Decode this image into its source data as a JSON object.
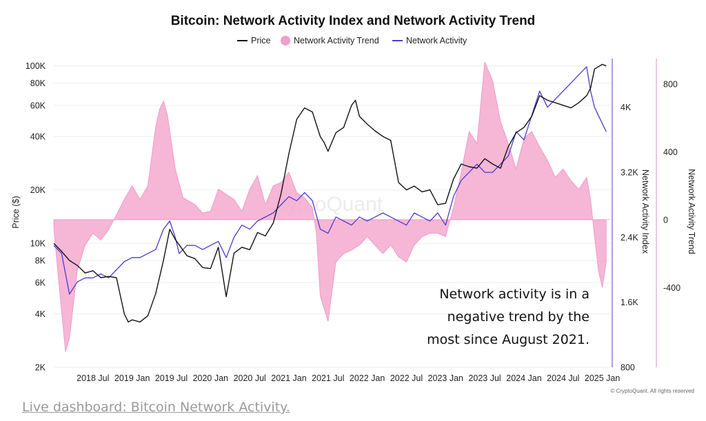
{
  "chart_data": {
    "type": "line",
    "title": "Bitcoin: Network Activity Index and Network Activity Trend",
    "legend": [
      {
        "name": "Price",
        "color": "#111111",
        "kind": "line"
      },
      {
        "name": "Network Activity Trend",
        "color": "#f19ec8",
        "kind": "dot"
      },
      {
        "name": "Network Activity",
        "color": "#4a3bd0",
        "kind": "line"
      }
    ],
    "legend_placement": "top-center",
    "x_range": [
      2018.0,
      2025.1
    ],
    "x_tick_labels": [
      "2018 Jul",
      "2019 Jan",
      "2019 Jul",
      "2020 Jan",
      "2020 Jul",
      "2021 Jan",
      "2021 Jul",
      "2022 Jan",
      "2022 Jul",
      "2023 Jan",
      "2023 Jul",
      "2024 Jan",
      "2024 Jul",
      "2025 Jan"
    ],
    "x_tick_values": [
      2018.5,
      2019.0,
      2019.5,
      2020.0,
      2020.5,
      2021.0,
      2021.5,
      2022.0,
      2022.5,
      2023.0,
      2023.5,
      2024.0,
      2024.5,
      2025.0
    ],
    "y_left": {
      "label": "Price ($)",
      "scale": "log",
      "range": [
        2000,
        110000
      ],
      "ticks": [
        2000,
        4000,
        6000,
        8000,
        10000,
        20000,
        40000,
        60000,
        80000,
        100000
      ],
      "tick_labels": [
        "2K",
        "4K",
        "6K",
        "8K",
        "10K",
        "20K",
        "40K",
        "60K",
        "80K",
        "100K"
      ]
    },
    "y_right1": {
      "label": "Network Activity Index",
      "range": [
        800,
        4600
      ],
      "ticks": [
        800,
        1600,
        2400,
        3200,
        4000
      ],
      "tick_labels": [
        "800",
        "1.6K",
        "2.4K",
        "3.2K",
        "4K"
      ]
    },
    "y_right2": {
      "label": "Network Activity Trend",
      "range": [
        -870,
        950
      ],
      "ticks": [
        -400,
        0,
        400,
        800
      ],
      "tick_labels": [
        "-400",
        "0",
        "400",
        "800"
      ]
    },
    "series": [
      {
        "name": "Price",
        "axis": "left",
        "x": [
          2018.0,
          2018.1,
          2018.2,
          2018.3,
          2018.4,
          2018.5,
          2018.6,
          2018.7,
          2018.8,
          2018.9,
          2018.95,
          2019.0,
          2019.1,
          2019.2,
          2019.3,
          2019.4,
          2019.48,
          2019.55,
          2019.6,
          2019.7,
          2019.8,
          2019.9,
          2020.0,
          2020.1,
          2020.2,
          2020.3,
          2020.4,
          2020.5,
          2020.6,
          2020.7,
          2020.8,
          2020.9,
          2021.0,
          2021.1,
          2021.2,
          2021.3,
          2021.4,
          2021.45,
          2021.5,
          2021.6,
          2021.7,
          2021.8,
          2021.85,
          2021.9,
          2022.0,
          2022.1,
          2022.2,
          2022.3,
          2022.4,
          2022.5,
          2022.6,
          2022.7,
          2022.8,
          2022.9,
          2023.0,
          2023.1,
          2023.2,
          2023.3,
          2023.4,
          2023.5,
          2023.6,
          2023.7,
          2023.8,
          2023.9,
          2024.0,
          2024.1,
          2024.2,
          2024.3,
          2024.4,
          2024.5,
          2024.6,
          2024.7,
          2024.8,
          2024.85,
          2024.9,
          2025.0,
          2025.05
        ],
        "values": [
          10000,
          9000,
          8000,
          7500,
          6800,
          7000,
          6400,
          6500,
          6400,
          4000,
          3600,
          3700,
          3600,
          3900,
          5200,
          8000,
          12000,
          10500,
          9800,
          8500,
          8200,
          7300,
          7200,
          9500,
          5000,
          8800,
          9500,
          9200,
          11500,
          11000,
          13000,
          19000,
          32000,
          50000,
          58000,
          55000,
          40000,
          37000,
          33000,
          42000,
          45000,
          60000,
          64000,
          52000,
          47000,
          43000,
          40000,
          38000,
          22000,
          20000,
          21000,
          19500,
          20000,
          16500,
          16800,
          23000,
          28000,
          27000,
          26500,
          30000,
          28000,
          26500,
          35000,
          42000,
          45000,
          52000,
          68000,
          64000,
          62000,
          60000,
          58000,
          62000,
          68000,
          75000,
          96000,
          102000,
          100000
        ]
      },
      {
        "name": "Network Activity",
        "axis": "right1",
        "x": [
          2018.0,
          2018.1,
          2018.2,
          2018.3,
          2018.4,
          2018.5,
          2018.6,
          2018.7,
          2018.8,
          2018.9,
          2019.0,
          2019.1,
          2019.2,
          2019.3,
          2019.4,
          2019.48,
          2019.55,
          2019.6,
          2019.7,
          2019.8,
          2019.9,
          2020.0,
          2020.1,
          2020.2,
          2020.3,
          2020.4,
          2020.5,
          2020.6,
          2020.7,
          2020.8,
          2020.9,
          2021.0,
          2021.1,
          2021.2,
          2021.3,
          2021.4,
          2021.5,
          2021.6,
          2021.7,
          2021.8,
          2021.9,
          2022.0,
          2022.1,
          2022.2,
          2022.3,
          2022.4,
          2022.5,
          2022.6,
          2022.7,
          2022.8,
          2022.9,
          2023.0,
          2023.1,
          2023.2,
          2023.3,
          2023.4,
          2023.5,
          2023.6,
          2023.7,
          2023.8,
          2023.9,
          2024.0,
          2024.1,
          2024.2,
          2024.3,
          2024.4,
          2024.5,
          2024.6,
          2024.7,
          2024.8,
          2024.85,
          2024.9,
          2025.0,
          2025.05
        ],
        "values": [
          2300,
          2200,
          1700,
          1850,
          1900,
          1900,
          1950,
          1900,
          2000,
          2100,
          2150,
          2150,
          2200,
          2250,
          2500,
          2600,
          2400,
          2200,
          2300,
          2300,
          2250,
          2300,
          2350,
          2150,
          2400,
          2550,
          2500,
          2600,
          2650,
          2700,
          2800,
          2900,
          2850,
          2950,
          2850,
          2500,
          2450,
          2650,
          2600,
          2550,
          2650,
          2600,
          2650,
          2700,
          2650,
          2600,
          2550,
          2700,
          2650,
          2600,
          2700,
          2550,
          2900,
          3100,
          3200,
          3300,
          3200,
          3200,
          3300,
          3400,
          3700,
          3600,
          3900,
          4200,
          4000,
          4100,
          4200,
          4300,
          4400,
          4500,
          4200,
          4000,
          3800,
          3700
        ]
      },
      {
        "name": "Network Activity Trend",
        "axis": "right2",
        "type": "area",
        "x": [
          2018.0,
          2018.08,
          2018.15,
          2018.2,
          2018.3,
          2018.4,
          2018.5,
          2018.6,
          2018.7,
          2018.8,
          2018.9,
          2019.0,
          2019.1,
          2019.2,
          2019.3,
          2019.35,
          2019.4,
          2019.45,
          2019.55,
          2019.65,
          2019.8,
          2019.9,
          2020.0,
          2020.1,
          2020.2,
          2020.3,
          2020.4,
          2020.5,
          2020.6,
          2020.7,
          2020.8,
          2020.9,
          2021.0,
          2021.1,
          2021.2,
          2021.3,
          2021.35,
          2021.4,
          2021.5,
          2021.6,
          2021.7,
          2021.8,
          2021.9,
          2022.0,
          2022.1,
          2022.2,
          2022.3,
          2022.4,
          2022.5,
          2022.6,
          2022.7,
          2022.8,
          2022.9,
          2023.0,
          2023.1,
          2023.2,
          2023.3,
          2023.4,
          2023.5,
          2023.6,
          2023.7,
          2023.8,
          2023.9,
          2024.0,
          2024.1,
          2024.2,
          2024.3,
          2024.4,
          2024.5,
          2024.6,
          2024.7,
          2024.8,
          2024.85,
          2024.9,
          2024.95,
          2025.0,
          2025.05
        ],
        "values": [
          -50,
          -450,
          -780,
          -700,
          -300,
          -150,
          -80,
          -120,
          -60,
          30,
          120,
          200,
          120,
          200,
          550,
          650,
          700,
          620,
          300,
          130,
          90,
          40,
          50,
          180,
          150,
          120,
          50,
          180,
          260,
          90,
          200,
          220,
          280,
          160,
          130,
          70,
          -80,
          -450,
          -600,
          -250,
          -200,
          -180,
          -150,
          -100,
          -150,
          -200,
          -150,
          -220,
          -250,
          -150,
          -100,
          -80,
          -80,
          -100,
          70,
          280,
          520,
          450,
          930,
          820,
          580,
          450,
          300,
          480,
          520,
          430,
          350,
          250,
          300,
          230,
          180,
          250,
          120,
          -100,
          -300,
          -400,
          -250
        ]
      }
    ],
    "annotation": [
      "Network activity is in a",
      "negative trend by the",
      "most since August 2021."
    ],
    "watermark": "CryptoQuant",
    "credit": "© CryptoQuant. All rights reserved"
  },
  "footer": {
    "link_text": "Live dashboard: Bitcoin Network Activity."
  }
}
